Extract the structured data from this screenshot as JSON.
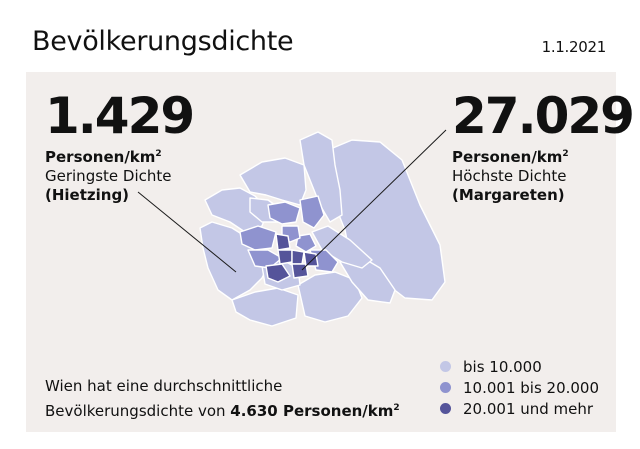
{
  "header": {
    "title": "Bevölkerungsdichte",
    "date": "1.1.2021"
  },
  "lowest": {
    "value": "1.429",
    "unit": "Personen/km",
    "unit_sup": "2",
    "label": "Geringste Dichte",
    "district": "(Hietzing)"
  },
  "highest": {
    "value": "27.029",
    "unit": "Personen/km",
    "unit_sup": "2",
    "label": "Höchste Dichte",
    "district": "(Margareten)"
  },
  "average": {
    "text_line1": "Wien hat eine durchschnittliche",
    "text_line2_prefix": "Bevölkerungsdichte von ",
    "value": "4.630 Personen/km",
    "value_sup": "2"
  },
  "legend": [
    {
      "label": "bis 10.000",
      "color": "#c3c7e6"
    },
    {
      "label": "10.001 bis 20.000",
      "color": "#8f93cf"
    },
    {
      "label": "20.001 und mehr",
      "color": "#55549a"
    }
  ],
  "colors": {
    "panel_bg": "#f2eeec",
    "low": "#c3c7e6",
    "mid": "#8f93cf",
    "high": "#55549a",
    "border": "#ffffff",
    "leader_line": "#1a1a1a"
  }
}
